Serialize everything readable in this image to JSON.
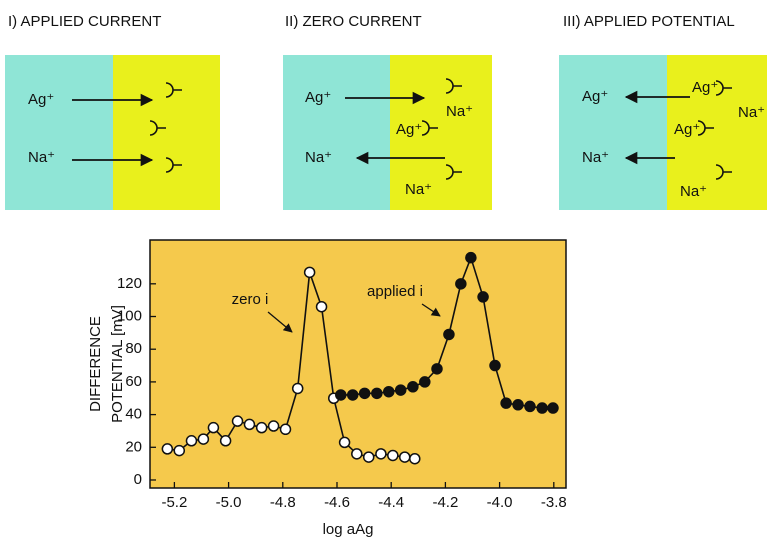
{
  "panels": [
    {
      "title": "I) APPLIED CURRENT",
      "labels": [
        "Ag⁺",
        "Na⁺"
      ]
    },
    {
      "title": "II) ZERO CURRENT",
      "labels": [
        "Ag⁺",
        "Na⁺",
        "Ag⁺",
        "Na⁺",
        "Na⁺"
      ]
    },
    {
      "title": "III) APPLIED POTENTIAL",
      "labels": [
        "Ag⁺",
        "Ag⁺",
        "Na⁺",
        "Ag⁺",
        "Na⁺",
        "Na⁺"
      ]
    }
  ],
  "chart_data": {
    "type": "scatter-line",
    "x_label": "log aAg",
    "y_label_lines": [
      "DIFFERENCE",
      "POTENTIAL [mV]"
    ],
    "background": "#f5c94c",
    "xlim": [
      -5.29,
      -3.755
    ],
    "ylim": [
      -4.9,
      146.8
    ],
    "xticks": [
      -5.2,
      {
        "value": -5,
        "label": "-5.0"
      },
      -4.8,
      -4.6,
      -4.4,
      -4.2,
      {
        "value": -4,
        "label": "-4.0"
      },
      -3.8
    ],
    "yticks": [
      0,
      20,
      40,
      60,
      80,
      100,
      120
    ],
    "series": [
      {
        "name": "zero i",
        "color": "#111111",
        "marker_fill": "#ffffff",
        "x": [
          -5.226,
          -5.182,
          -5.137,
          -5.093,
          -5.056,
          -5.011,
          -4.967,
          -4.923,
          -4.878,
          -4.834,
          -4.79,
          -4.745,
          -4.701,
          -4.657,
          -4.612,
          -4.572,
          -4.527,
          -4.483,
          -4.438,
          -4.394,
          -4.35,
          -4.313
        ],
        "values": [
          19,
          18,
          24,
          25,
          32,
          24,
          36,
          34,
          32,
          33,
          31,
          56,
          127,
          106,
          50,
          23,
          16,
          14,
          16,
          15,
          14,
          13
        ]
      },
      {
        "name": "applied i",
        "color": "#111111",
        "marker_fill": "#111111",
        "x": [
          -4.586,
          -4.542,
          -4.498,
          -4.453,
          -4.409,
          -4.365,
          -4.32,
          -4.276,
          -4.231,
          -4.187,
          -4.143,
          -4.106,
          -4.061,
          -4.017,
          -3.976,
          -3.932,
          -3.888,
          -3.843,
          -3.803
        ],
        "values": [
          52,
          52,
          53,
          53,
          54,
          55,
          57,
          60,
          68,
          89,
          120,
          136,
          112,
          70,
          47,
          46,
          45,
          44,
          44
        ]
      }
    ]
  }
}
